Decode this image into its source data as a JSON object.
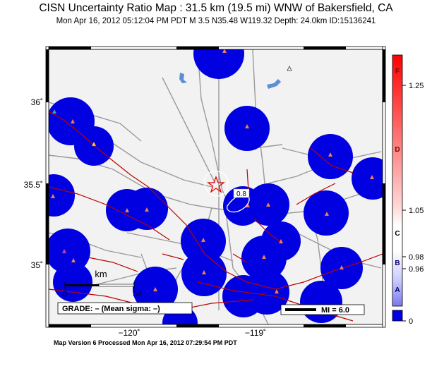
{
  "header": {
    "title": "CISN Uncertainty Ratio Map : 31.5 km (19.5 mi) WNW of Bakersfield, CA",
    "subtitle": "Mon Apr 16, 2012 05:12:04 PM PDT   M 3.5   N35.48 W119.32   Depth: 24.0km   ID:15136241"
  },
  "map": {
    "lat_ticks": [
      {
        "value": 36,
        "label": "36˚"
      },
      {
        "value": 35.5,
        "label": "35.5˚"
      },
      {
        "value": 35,
        "label": "35˚"
      }
    ],
    "lon_ticks": [
      {
        "value": -120,
        "label": "−120˚"
      },
      {
        "value": -119,
        "label": "−119˚"
      }
    ],
    "epicenter": {
      "lat": 35.48,
      "lon": -119.32
    },
    "contour_label": "0.8",
    "scale_bar": {
      "unit": "km",
      "start": "0",
      "end": "50"
    },
    "grade_text": "GRADE: – (Mean sigma: –)",
    "mi_legend": "MI = 6.0"
  },
  "colorbar": {
    "letters": [
      "F",
      "D",
      "C",
      "B",
      "A"
    ],
    "values": [
      "1.25",
      "1.05",
      "0.98",
      "0.96",
      "0"
    ]
  },
  "colors": {
    "station_blob": "#0000e0",
    "fault": "#bb0000",
    "road": "#9a9a9a",
    "water": "#5b8ed6",
    "land": "#f2f2f2"
  },
  "footer": {
    "text": "Map Version 6 Processed Mon Apr 16, 2012 07:29:54 PM PDT"
  }
}
